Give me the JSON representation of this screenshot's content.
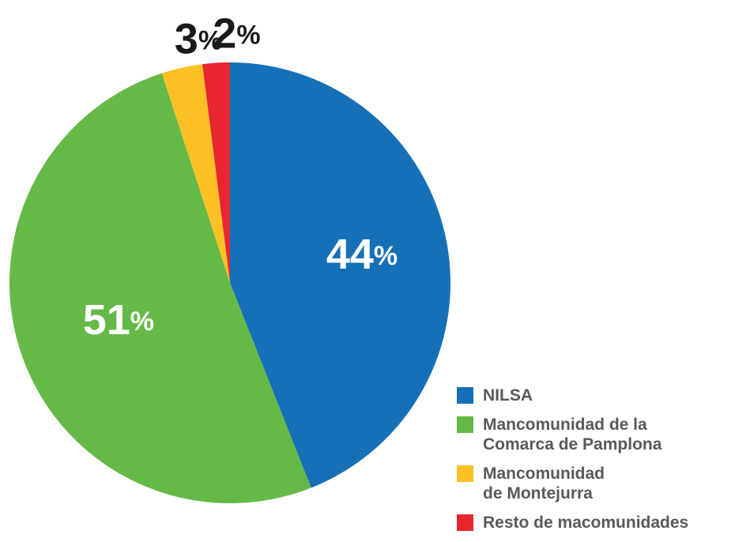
{
  "chart_data": {
    "type": "pie",
    "categories": [
      "NILSA",
      "Mancomunidad de la\nComarca de Pamplona",
      "Mancomunidad\nde Montejurra",
      "Resto de macomunidades"
    ],
    "values": [
      44,
      51,
      3,
      2
    ],
    "value_labels": [
      "44%",
      "51%",
      "3%",
      "2%"
    ],
    "colors": [
      "#1570b8",
      "#65b947",
      "#fdc125",
      "#e8262f"
    ],
    "legend": "lower right"
  }
}
